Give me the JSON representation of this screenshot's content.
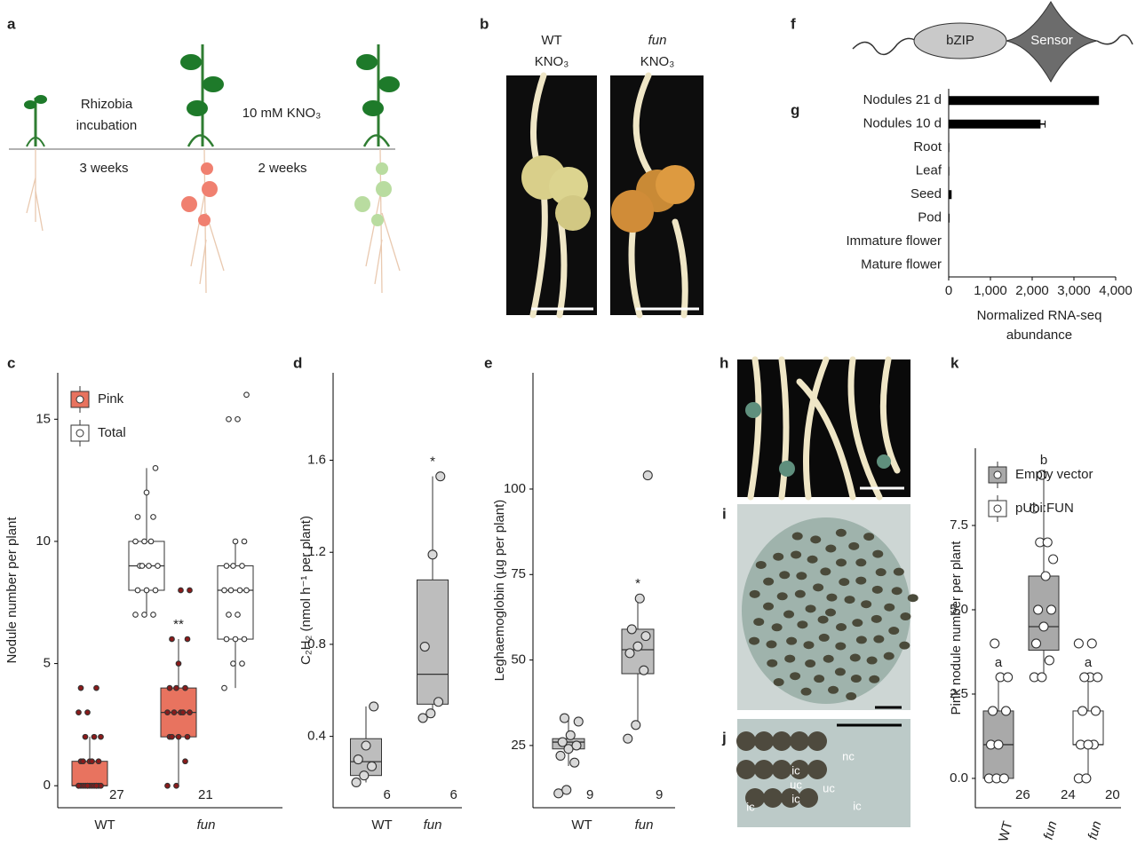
{
  "panel_labels": [
    "a",
    "b",
    "c",
    "d",
    "e",
    "f",
    "g",
    "h",
    "i",
    "j",
    "k"
  ],
  "diagram": {
    "rhizobia": [
      "Rhizobia",
      "incubation"
    ],
    "nitrate": "10 mM KNO₃",
    "weeks1": "3 weeks",
    "weeks2": "2 weeks"
  },
  "photo_labels": {
    "wt": [
      "WT",
      "KNO₃"
    ],
    "fun": [
      "fun",
      "KNO₃"
    ]
  },
  "protein": {
    "domains": [
      "bZIP",
      "Sensor"
    ]
  },
  "section_labels": [
    "ic",
    "uc",
    "ic",
    "ic",
    "uc",
    "ic",
    "nc"
  ],
  "chart_data": [
    {
      "type": "hbar",
      "categories": [
        "Nodules 21 d",
        "Nodules 10 d",
        "Root",
        "Leaf",
        "Seed",
        "Pod",
        "Immature flower",
        "Mature flower"
      ],
      "values": [
        3600,
        2200,
        15,
        15,
        70,
        20,
        10,
        10
      ],
      "errors": [
        null,
        110,
        null,
        null,
        null,
        null,
        null,
        null
      ],
      "color": "#000000",
      "xlim": [
        0,
        4000
      ],
      "xticks": [
        0,
        {
          "value": 1000,
          "label": "1,000"
        },
        {
          "value": 2000,
          "label": "2,000"
        },
        {
          "value": 3000,
          "label": "3,000"
        },
        {
          "value": 4000,
          "label": "4,000"
        }
      ],
      "xlabel": [
        "Normalized RNA-seq",
        "abundance"
      ]
    },
    {
      "type": "box",
      "ylabel": "Nodule number per plant",
      "categories": [
        "WT",
        "fun"
      ],
      "ylim": [
        -0.9,
        16.9
      ],
      "yticks": [
        0,
        5,
        10,
        15
      ],
      "legend": "top-left",
      "series": [
        {
          "name": "Pink",
          "color": "#e8735f",
          "point_color": "#8b1a1a",
          "boxes": [
            {
              "min": 0,
              "q1": 0,
              "median": 0,
              "q3": 1,
              "max": 2,
              "points": [
                0,
                0,
                0,
                0,
                0,
                0,
                0,
                0,
                0,
                0,
                0,
                0,
                0,
                0,
                1,
                1,
                1,
                1,
                1,
                2,
                2,
                2,
                3,
                3,
                4,
                4
              ],
              "n": 27
            },
            {
              "min": 0,
              "q1": 2,
              "median": 3,
              "q3": 4,
              "max": 6,
              "points": [
                0,
                0,
                1,
                2,
                2,
                2,
                2,
                3,
                3,
                3,
                3,
                3,
                4,
                4,
                4,
                5,
                6,
                6,
                8,
                8
              ],
              "n": 21,
              "annotation": "**"
            }
          ]
        },
        {
          "name": "Total",
          "color": "#ffffff",
          "point_color": "#ffffff",
          "boxes": [
            {
              "min": 7,
              "q1": 8,
              "median": 9,
              "q3": 10,
              "max": 13,
              "points": [
                7,
                7,
                7,
                8,
                8,
                8,
                9,
                9,
                9,
                9,
                10,
                10,
                10,
                11,
                11,
                12,
                13
              ]
            },
            {
              "min": 4,
              "q1": 6,
              "median": 8,
              "q3": 9,
              "max": 10,
              "points": [
                4,
                5,
                5,
                6,
                6,
                6,
                7,
                7,
                8,
                8,
                8,
                8,
                9,
                9,
                9,
                10,
                10,
                15,
                15,
                16
              ]
            }
          ]
        }
      ]
    },
    {
      "type": "box",
      "ylabel": "C₂H₂ (nmol h⁻¹ per plant)",
      "categories": [
        "WT",
        "fun"
      ],
      "ylim": [
        0.09,
        1.98
      ],
      "yticks": [
        0.4,
        0.8,
        1.2,
        1.6
      ],
      "series": [
        {
          "color": "#bdbdbd",
          "point_color": "#d9d9d9",
          "boxes": [
            {
              "min": 0.2,
              "q1": 0.23,
              "median": 0.29,
              "q3": 0.39,
              "max": 0.53,
              "points": [
                0.2,
                0.23,
                0.27,
                0.3,
                0.36,
                0.53
              ],
              "n": 6
            },
            {
              "min": 0.48,
              "q1": 0.54,
              "median": 0.67,
              "q3": 1.08,
              "max": 1.53,
              "points": [
                0.48,
                0.5,
                0.55,
                0.79,
                1.19,
                1.53
              ],
              "n": 6,
              "annotation": "*"
            }
          ]
        }
      ]
    },
    {
      "type": "box",
      "ylabel": "Leghaemoglobin (µg per plant)",
      "categories": [
        "WT",
        "fun"
      ],
      "ylim": [
        6.8,
        134
      ],
      "yticks": [
        25,
        50,
        75,
        100
      ],
      "series": [
        {
          "color": "#bdbdbd",
          "point_color": "#d9d9d9",
          "boxes": [
            {
              "min": 19,
              "q1": 24,
              "median": 26,
              "q3": 27,
              "max": 33,
              "points": [
                11,
                12,
                20,
                22,
                24,
                25,
                26,
                28,
                32,
                33
              ],
              "n": 9
            },
            {
              "min": 31,
              "q1": 46,
              "median": 53,
              "q3": 59,
              "max": 68,
              "points": [
                27,
                31,
                47,
                52,
                54,
                57,
                59,
                68,
                104
              ],
              "n": 9,
              "annotation": "*"
            }
          ]
        }
      ]
    },
    {
      "type": "box",
      "ylabel": "Pink nodule number per plant",
      "categories": [
        "WT",
        "fun",
        "fun"
      ],
      "ylim": [
        -0.87,
        9.79
      ],
      "yticks": [
        {
          "value": 0,
          "label": "0.0"
        },
        2.5,
        {
          "value": 5,
          "label": "5.0"
        },
        7.5
      ],
      "legend": "top-left",
      "series": [
        {
          "name": "Empty vector",
          "color": "#a9a9a9",
          "point_color": "#ffffff",
          "boxes": [
            {
              "min": 0,
              "q1": 0,
              "median": 1,
              "q3": 2,
              "max": 3,
              "points": [
                0,
                0,
                0,
                1,
                1,
                2,
                2,
                3,
                3,
                4
              ],
              "n": 26,
              "annotation": "a"
            },
            {
              "min": 3,
              "q1": 3.8,
              "median": 4.5,
              "q3": 6,
              "max": 9,
              "points": [
                3,
                3,
                3.5,
                4,
                4.5,
                5,
                5,
                6,
                6.5,
                7,
                7,
                8,
                9
              ],
              "n": 24,
              "annotation": "b"
            },
            null
          ]
        },
        {
          "name": "pUbi:FUN",
          "color": "#ffffff",
          "point_color": "#ffffff",
          "boxes": [
            null,
            null,
            {
              "min": 0,
              "q1": 1,
              "median": 1,
              "q3": 2,
              "max": 3,
              "points": [
                0,
                0,
                1,
                1,
                1,
                2,
                2,
                3,
                3,
                3,
                4,
                4
              ],
              "n": 20,
              "annotation": "a"
            }
          ]
        }
      ]
    }
  ]
}
